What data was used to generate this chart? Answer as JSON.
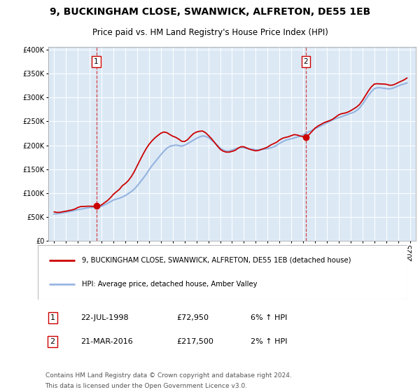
{
  "title": "9, BUCKINGHAM CLOSE, SWANWICK, ALFRETON, DE55 1EB",
  "subtitle": "Price paid vs. HM Land Registry's House Price Index (HPI)",
  "sale1_date": "22-JUL-1998",
  "sale1_price": 72950,
  "sale1_label": "1",
  "sale1_year": 1998.55,
  "sale2_date": "21-MAR-2016",
  "sale2_price": 217500,
  "sale2_label": "2",
  "sale2_year": 2016.22,
  "legend_line1": "9, BUCKINGHAM CLOSE, SWANWICK, ALFRETON, DE55 1EB (detached house)",
  "legend_line2": "HPI: Average price, detached house, Amber Valley",
  "footnote1": "Contains HM Land Registry data © Crown copyright and database right 2024.",
  "footnote2": "This data is licensed under the Open Government Licence v3.0.",
  "ylim": [
    0,
    400000
  ],
  "xlim_start": 1994.5,
  "xlim_end": 2025.5,
  "background_color": "#dce9f5",
  "grid_color": "#ffffff",
  "red_color": "#cc0000",
  "blue_color": "#88aadd",
  "dashed_color": "#cc0000",
  "hpi_years": [
    1995.0,
    1995.25,
    1995.5,
    1995.75,
    1996.0,
    1996.25,
    1996.5,
    1996.75,
    1997.0,
    1997.25,
    1997.5,
    1997.75,
    1998.0,
    1998.25,
    1998.5,
    1998.75,
    1999.0,
    1999.25,
    1999.5,
    1999.75,
    2000.0,
    2000.25,
    2000.5,
    2000.75,
    2001.0,
    2001.25,
    2001.5,
    2001.75,
    2002.0,
    2002.25,
    2002.5,
    2002.75,
    2003.0,
    2003.25,
    2003.5,
    2003.75,
    2004.0,
    2004.25,
    2004.5,
    2004.75,
    2005.0,
    2005.25,
    2005.5,
    2005.75,
    2006.0,
    2006.25,
    2006.5,
    2006.75,
    2007.0,
    2007.25,
    2007.5,
    2007.75,
    2008.0,
    2008.25,
    2008.5,
    2008.75,
    2009.0,
    2009.25,
    2009.5,
    2009.75,
    2010.0,
    2010.25,
    2010.5,
    2010.75,
    2011.0,
    2011.25,
    2011.5,
    2011.75,
    2012.0,
    2012.25,
    2012.5,
    2012.75,
    2013.0,
    2013.25,
    2013.5,
    2013.75,
    2014.0,
    2014.25,
    2014.5,
    2014.75,
    2015.0,
    2015.25,
    2015.5,
    2015.75,
    2016.0,
    2016.25,
    2016.5,
    2016.75,
    2017.0,
    2017.25,
    2017.5,
    2017.75,
    2018.0,
    2018.25,
    2018.5,
    2018.75,
    2019.0,
    2019.25,
    2019.5,
    2019.75,
    2020.0,
    2020.25,
    2020.5,
    2020.75,
    2021.0,
    2021.25,
    2021.5,
    2021.75,
    2022.0,
    2022.25,
    2022.5,
    2022.75,
    2023.0,
    2023.25,
    2023.5,
    2023.75,
    2024.0,
    2024.25,
    2024.5,
    2024.75
  ],
  "hpi_values": [
    57000,
    57500,
    58000,
    59000,
    60000,
    61000,
    62000,
    63500,
    65000,
    66500,
    68000,
    69500,
    70500,
    71000,
    71500,
    72000,
    74000,
    77000,
    80000,
    83000,
    86000,
    88000,
    90000,
    93000,
    96000,
    100000,
    104000,
    109000,
    116000,
    124000,
    132000,
    140000,
    149000,
    157000,
    164000,
    172000,
    180000,
    187000,
    193000,
    197000,
    199000,
    200000,
    199000,
    198000,
    200000,
    203000,
    207000,
    211000,
    215000,
    218000,
    220000,
    219000,
    216000,
    211000,
    206000,
    200000,
    194000,
    190000,
    188000,
    188000,
    190000,
    192000,
    194000,
    195000,
    195000,
    194000,
    193000,
    192000,
    190000,
    190000,
    191000,
    192000,
    193000,
    195000,
    197000,
    200000,
    204000,
    207000,
    210000,
    212000,
    214000,
    216000,
    218000,
    220000,
    222000,
    225000,
    228000,
    231000,
    235000,
    238000,
    241000,
    244000,
    247000,
    250000,
    253000,
    256000,
    258000,
    260000,
    262000,
    264000,
    266000,
    268000,
    272000,
    278000,
    286000,
    295000,
    304000,
    312000,
    318000,
    320000,
    320000,
    319000,
    318000,
    317000,
    318000,
    320000,
    323000,
    326000,
    328000,
    330000
  ],
  "red_years": [
    1995.0,
    1995.25,
    1995.5,
    1995.75,
    1996.0,
    1996.25,
    1996.5,
    1996.75,
    1997.0,
    1997.25,
    1997.5,
    1997.75,
    1998.0,
    1998.25,
    1998.55,
    1998.75,
    1999.0,
    1999.25,
    1999.5,
    1999.75,
    2000.0,
    2000.25,
    2000.5,
    2000.75,
    2001.0,
    2001.25,
    2001.5,
    2001.75,
    2002.0,
    2002.25,
    2002.5,
    2002.75,
    2003.0,
    2003.25,
    2003.5,
    2003.75,
    2004.0,
    2004.25,
    2004.5,
    2004.75,
    2005.0,
    2005.25,
    2005.5,
    2005.75,
    2006.0,
    2006.25,
    2006.5,
    2006.75,
    2007.0,
    2007.25,
    2007.5,
    2007.75,
    2008.0,
    2008.25,
    2008.5,
    2008.75,
    2009.0,
    2009.25,
    2009.5,
    2009.75,
    2010.0,
    2010.25,
    2010.5,
    2010.75,
    2011.0,
    2011.25,
    2011.5,
    2011.75,
    2012.0,
    2012.25,
    2012.5,
    2012.75,
    2013.0,
    2013.25,
    2013.5,
    2013.75,
    2014.0,
    2014.25,
    2014.5,
    2014.75,
    2015.0,
    2015.25,
    2015.5,
    2015.75,
    2016.0,
    2016.22,
    2016.5,
    2016.75,
    2017.0,
    2017.25,
    2017.5,
    2017.75,
    2018.0,
    2018.25,
    2018.5,
    2018.75,
    2019.0,
    2019.25,
    2019.5,
    2019.75,
    2020.0,
    2020.25,
    2020.5,
    2020.75,
    2021.0,
    2021.25,
    2021.5,
    2021.75,
    2022.0,
    2022.25,
    2022.5,
    2022.75,
    2023.0,
    2023.25,
    2023.5,
    2023.75,
    2024.0,
    2024.25,
    2024.5,
    2024.75
  ],
  "red_values": [
    58500,
    59000,
    60000,
    61500,
    63000,
    64500,
    66000,
    68000,
    70000,
    71500,
    72500,
    72800,
    72700,
    72800,
    72950,
    73500,
    76000,
    80000,
    85000,
    91000,
    97000,
    102000,
    107000,
    114000,
    120000,
    128000,
    137000,
    147000,
    158000,
    170000,
    182000,
    193000,
    203000,
    211000,
    218000,
    223000,
    226000,
    226000,
    224000,
    221000,
    218000,
    216000,
    213000,
    210000,
    211000,
    214000,
    218000,
    222000,
    226000,
    228000,
    228000,
    225000,
    220000,
    214000,
    207000,
    200000,
    193000,
    188000,
    185000,
    185000,
    188000,
    191000,
    194000,
    196000,
    197000,
    196000,
    194000,
    192000,
    190000,
    190000,
    191000,
    193000,
    195000,
    198000,
    201000,
    205000,
    210000,
    214000,
    217000,
    219000,
    220000,
    221000,
    221000,
    220000,
    219000,
    217500,
    222000,
    227000,
    233000,
    238000,
    242000,
    246000,
    249000,
    252000,
    255000,
    258000,
    261000,
    264000,
    267000,
    270000,
    273000,
    276000,
    280000,
    286000,
    294000,
    303000,
    312000,
    320000,
    326000,
    328000,
    328000,
    327000,
    326000,
    325000,
    326000,
    328000,
    331000,
    334000,
    336000,
    338000
  ]
}
